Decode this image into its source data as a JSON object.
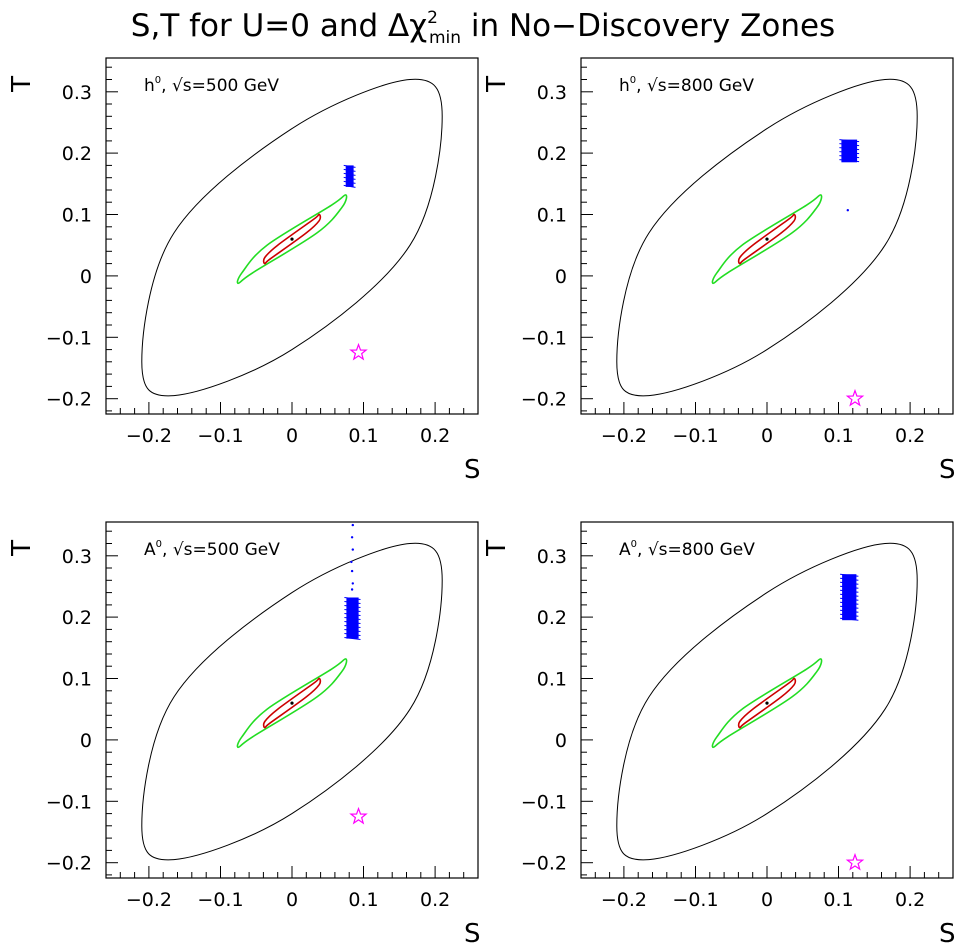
{
  "title": {
    "main": "S,T for U=0 and ",
    "delta": "Δχ",
    "sup": "2",
    "sub": "min",
    "rest": " in No−Discovery Zones"
  },
  "chart_data": [
    {
      "type": "scatter",
      "label": {
        "particle": "h",
        "sup": "0",
        "energy": ", √s=500 GeV"
      },
      "xlabel": "S",
      "ylabel": "T",
      "xlim": [
        -0.26,
        0.26
      ],
      "ylim": [
        -0.225,
        0.355
      ],
      "xticks": [
        -0.2,
        -0.1,
        0,
        0.1,
        0.2
      ],
      "yticks": [
        -0.2,
        -0.1,
        0,
        0.1,
        0.2,
        0.3
      ],
      "xticklabels": [
        "−0.2",
        "−0.1",
        "0",
        "0.1",
        "0.2"
      ],
      "yticklabels": [
        "−0.2",
        "−0.1",
        "0",
        "0.1",
        "0.2",
        "0.3"
      ],
      "center": [
        0,
        0.06
      ],
      "ellipses": [
        {
          "name": "outer",
          "color": "#000000",
          "points": [
            [
              0.165,
              0.32
            ],
            [
              0.21,
              0.26
            ],
            [
              0.165,
              0.05
            ],
            [
              0,
              -0.12
            ],
            [
              -0.165,
              -0.195
            ],
            [
              -0.21,
              -0.14
            ],
            [
              -0.165,
              0.07
            ],
            [
              0,
              0.24
            ]
          ]
        },
        {
          "name": "green",
          "color": "#22dd22",
          "points": [
            [
              0.075,
              0.132
            ],
            [
              0.07,
              0.112
            ],
            [
              0.035,
              0.07
            ],
            [
              -0.055,
              0.005
            ],
            [
              -0.075,
              -0.012
            ],
            [
              -0.07,
              0.005
            ],
            [
              -0.035,
              0.05
            ],
            [
              0.055,
              0.115
            ]
          ]
        },
        {
          "name": "red",
          "color": "#cc0000",
          "points": [
            [
              0.038,
              0.1
            ],
            [
              0.038,
              0.09
            ],
            [
              0.02,
              0.07
            ],
            [
              -0.03,
              0.028
            ],
            [
              -0.038,
              0.02
            ],
            [
              -0.038,
              0.03
            ],
            [
              -0.02,
              0.05
            ],
            [
              0.03,
              0.092
            ]
          ]
        }
      ],
      "blue_regions": [
        {
          "s": [
            0.075,
            0.086
          ],
          "t": [
            0.145,
            0.18
          ]
        }
      ],
      "blue_points": [],
      "star": [
        0.093,
        -0.125
      ],
      "colors": {
        "blue": "#0000ff",
        "star": "#ff00ff"
      }
    },
    {
      "type": "scatter",
      "label": {
        "particle": "h",
        "sup": "0",
        "energy": ", √s=800 GeV"
      },
      "xlabel": "S",
      "ylabel": "T",
      "xlim": [
        -0.26,
        0.26
      ],
      "ylim": [
        -0.225,
        0.355
      ],
      "xticks": [
        -0.2,
        -0.1,
        0,
        0.1,
        0.2
      ],
      "yticks": [
        -0.2,
        -0.1,
        0,
        0.1,
        0.2,
        0.3
      ],
      "xticklabels": [
        "−0.2",
        "−0.1",
        "0",
        "0.1",
        "0.2"
      ],
      "yticklabels": [
        "−0.2",
        "−0.1",
        "0",
        "0.1",
        "0.2",
        "0.3"
      ],
      "center": [
        0,
        0.06
      ],
      "ellipses": [
        {
          "name": "outer",
          "color": "#000000",
          "points": [
            [
              0.165,
              0.32
            ],
            [
              0.21,
              0.26
            ],
            [
              0.165,
              0.05
            ],
            [
              0,
              -0.12
            ],
            [
              -0.165,
              -0.195
            ],
            [
              -0.21,
              -0.14
            ],
            [
              -0.165,
              0.07
            ],
            [
              0,
              0.24
            ]
          ]
        },
        {
          "name": "green",
          "color": "#22dd22",
          "points": [
            [
              0.075,
              0.132
            ],
            [
              0.07,
              0.112
            ],
            [
              0.035,
              0.07
            ],
            [
              -0.055,
              0.005
            ],
            [
              -0.075,
              -0.012
            ],
            [
              -0.07,
              0.005
            ],
            [
              -0.035,
              0.05
            ],
            [
              0.055,
              0.115
            ]
          ]
        },
        {
          "name": "red",
          "color": "#cc0000",
          "points": [
            [
              0.038,
              0.1
            ],
            [
              0.038,
              0.09
            ],
            [
              0.02,
              0.07
            ],
            [
              -0.03,
              0.028
            ],
            [
              -0.038,
              0.02
            ],
            [
              -0.038,
              0.03
            ],
            [
              -0.02,
              0.05
            ],
            [
              0.03,
              0.092
            ]
          ]
        }
      ],
      "blue_regions": [
        {
          "s": [
            0.104,
            0.126
          ],
          "t": [
            0.185,
            0.222
          ]
        }
      ],
      "blue_points": [
        [
          0.113,
          0.107
        ]
      ],
      "star": [
        0.123,
        -0.2
      ],
      "colors": {
        "blue": "#0000ff",
        "star": "#ff00ff"
      }
    },
    {
      "type": "scatter",
      "label": {
        "particle": "A",
        "sup": "0",
        "energy": ", √s=500 GeV"
      },
      "xlabel": "S",
      "ylabel": "T",
      "xlim": [
        -0.26,
        0.26
      ],
      "ylim": [
        -0.225,
        0.355
      ],
      "xticks": [
        -0.2,
        -0.1,
        0,
        0.1,
        0.2
      ],
      "yticks": [
        -0.2,
        -0.1,
        0,
        0.1,
        0.2,
        0.3
      ],
      "xticklabels": [
        "−0.2",
        "−0.1",
        "0",
        "0.1",
        "0.2"
      ],
      "yticklabels": [
        "−0.2",
        "−0.1",
        "0",
        "0.1",
        "0.2",
        "0.3"
      ],
      "center": [
        0,
        0.06
      ],
      "ellipses": [
        {
          "name": "outer",
          "color": "#000000",
          "points": [
            [
              0.165,
              0.32
            ],
            [
              0.21,
              0.26
            ],
            [
              0.165,
              0.05
            ],
            [
              0,
              -0.12
            ],
            [
              -0.165,
              -0.195
            ],
            [
              -0.21,
              -0.14
            ],
            [
              -0.165,
              0.07
            ],
            [
              0,
              0.24
            ]
          ]
        },
        {
          "name": "green",
          "color": "#22dd22",
          "points": [
            [
              0.075,
              0.132
            ],
            [
              0.07,
              0.112
            ],
            [
              0.035,
              0.07
            ],
            [
              -0.055,
              0.005
            ],
            [
              -0.075,
              -0.012
            ],
            [
              -0.07,
              0.005
            ],
            [
              -0.035,
              0.05
            ],
            [
              0.055,
              0.115
            ]
          ]
        },
        {
          "name": "red",
          "color": "#cc0000",
          "points": [
            [
              0.038,
              0.1
            ],
            [
              0.038,
              0.09
            ],
            [
              0.02,
              0.07
            ],
            [
              -0.03,
              0.028
            ],
            [
              -0.038,
              0.02
            ],
            [
              -0.038,
              0.03
            ],
            [
              -0.02,
              0.05
            ],
            [
              0.03,
              0.092
            ]
          ]
        }
      ],
      "blue_regions": [
        {
          "s": [
            0.076,
            0.093
          ],
          "t": [
            0.165,
            0.232
          ]
        }
      ],
      "blue_points": [
        [
          0.085,
          0.35
        ],
        [
          0.084,
          0.33
        ],
        [
          0.085,
          0.31
        ],
        [
          0.083,
          0.29
        ],
        [
          0.084,
          0.275
        ],
        [
          0.085,
          0.255
        ],
        [
          0.084,
          0.245
        ]
      ],
      "star": [
        0.093,
        -0.125
      ],
      "colors": {
        "blue": "#0000ff",
        "star": "#ff00ff"
      }
    },
    {
      "type": "scatter",
      "label": {
        "particle": "A",
        "sup": "0",
        "energy": ", √s=800 GeV"
      },
      "xlabel": "S",
      "ylabel": "T",
      "xlim": [
        -0.26,
        0.26
      ],
      "ylim": [
        -0.225,
        0.355
      ],
      "xticks": [
        -0.2,
        -0.1,
        0,
        0.1,
        0.2
      ],
      "yticks": [
        -0.2,
        -0.1,
        0,
        0.1,
        0.2,
        0.3
      ],
      "xticklabels": [
        "−0.2",
        "−0.1",
        "0",
        "0.1",
        "0.2"
      ],
      "yticklabels": [
        "−0.2",
        "−0.1",
        "0",
        "0.1",
        "0.2",
        "0.3"
      ],
      "center": [
        0,
        0.06
      ],
      "ellipses": [
        {
          "name": "outer",
          "color": "#000000",
          "points": [
            [
              0.165,
              0.32
            ],
            [
              0.21,
              0.26
            ],
            [
              0.165,
              0.05
            ],
            [
              0,
              -0.12
            ],
            [
              -0.165,
              -0.195
            ],
            [
              -0.21,
              -0.14
            ],
            [
              -0.165,
              0.07
            ],
            [
              0,
              0.24
            ]
          ]
        },
        {
          "name": "green",
          "color": "#22dd22",
          "points": [
            [
              0.075,
              0.132
            ],
            [
              0.07,
              0.112
            ],
            [
              0.035,
              0.07
            ],
            [
              -0.055,
              0.005
            ],
            [
              -0.075,
              -0.012
            ],
            [
              -0.07,
              0.005
            ],
            [
              -0.035,
              0.05
            ],
            [
              0.055,
              0.115
            ]
          ]
        },
        {
          "name": "red",
          "color": "#cc0000",
          "points": [
            [
              0.038,
              0.1
            ],
            [
              0.038,
              0.09
            ],
            [
              0.02,
              0.07
            ],
            [
              -0.03,
              0.028
            ],
            [
              -0.038,
              0.02
            ],
            [
              -0.038,
              0.03
            ],
            [
              -0.02,
              0.05
            ],
            [
              0.03,
              0.092
            ]
          ]
        }
      ],
      "blue_regions": [
        {
          "s": [
            0.105,
            0.125
          ],
          "t": [
            0.195,
            0.27
          ]
        }
      ],
      "blue_points": [],
      "star": [
        0.123,
        -0.2
      ],
      "colors": {
        "blue": "#0000ff",
        "star": "#ff00ff"
      }
    }
  ]
}
